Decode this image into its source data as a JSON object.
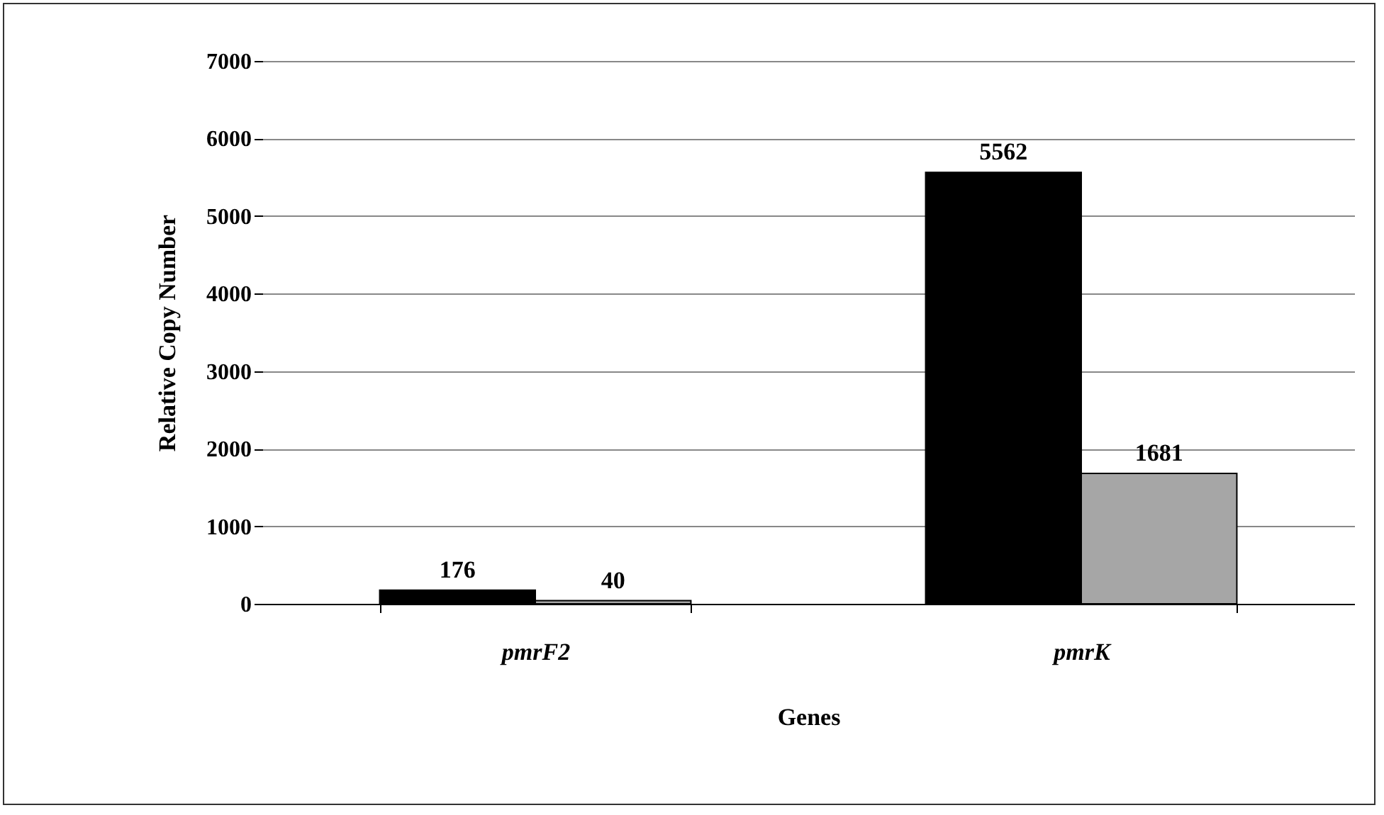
{
  "chart_data": {
    "type": "bar",
    "xlabel": "Genes",
    "ylabel": "Relative Copy Number",
    "categories": [
      "pmrF2",
      "pmrK"
    ],
    "series": [
      {
        "color": "#000000",
        "values": [
          176,
          5562
        ]
      },
      {
        "color": "#a6a6a6",
        "values": [
          40,
          1681
        ]
      }
    ],
    "ylim": [
      0,
      7000
    ],
    "yticks": [
      0,
      1000,
      2000,
      3000,
      4000,
      5000,
      6000,
      7000
    ],
    "grid": "y",
    "data_labels": true
  }
}
